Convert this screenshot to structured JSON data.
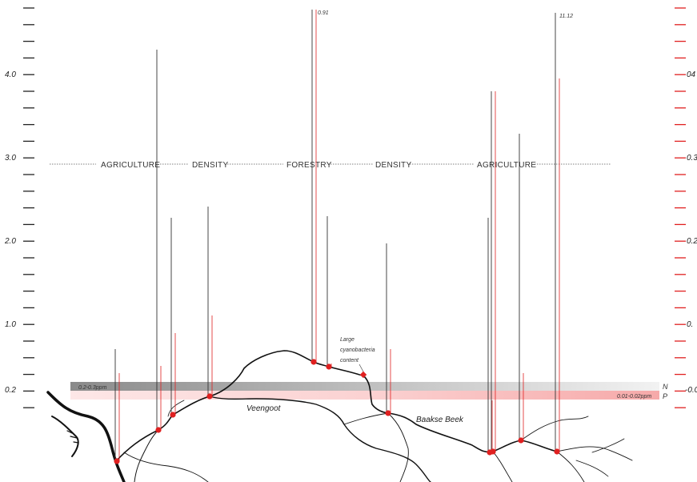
{
  "chart_data": {
    "type": "bar",
    "description_axes": {
      "left_ticks": [
        "0.2",
        "1.0",
        "2.0",
        "3.0",
        "4.0"
      ],
      "right_ticks": [
        "-0.0",
        "0.",
        "0.2",
        "0.3",
        "04"
      ]
    },
    "zones": [
      "AGRICULTURE",
      "DENSITY",
      "FORESTRY",
      "DENSITY",
      "AGRICULTURE"
    ],
    "series": [
      {
        "color": "#333333",
        "values": [
          0.7,
          4.3,
          2.3,
          2.4,
          1.8,
          2.3,
          4.5,
          1.9,
          2.3,
          3.3,
          4.0
        ]
      },
      {
        "color": "#e02020",
        "values": [
          0.3,
          0.8,
          0.8,
          0.9,
          4.5,
          0.3,
          3.8,
          0.5,
          0.5,
          0.5,
          0.1
        ]
      }
    ],
    "annotations": {
      "peak_left": "0.91",
      "peak_right": "11.12",
      "cyano_line1": "Large",
      "cyano_line2": "cyanobacteria",
      "cyano_line3": "content"
    },
    "bands": {
      "n_range": "0.2-0.3ppm",
      "p_range": "0.01-0.02ppm",
      "n_label": "N",
      "p_label": "P"
    },
    "rivers": [
      "Veengoot",
      "Baakse Beek"
    ],
    "colors": {
      "nitrogen": "#333333",
      "phosphorus": "#e02020"
    }
  }
}
